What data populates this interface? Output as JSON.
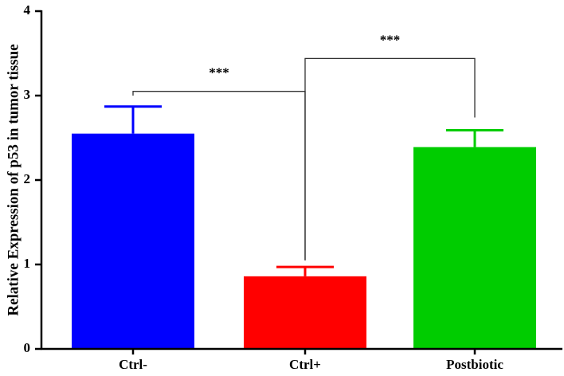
{
  "chart_data": {
    "type": "bar",
    "ylabel": "Relative Expression of p53 in tumor tissue",
    "ylim": [
      0,
      4
    ],
    "yticks": [
      0,
      1,
      2,
      3,
      4
    ],
    "grid": false,
    "categories": [
      "Ctrl-",
      "Ctrl+",
      "Postbiotic"
    ],
    "values": [
      2.55,
      0.86,
      2.39
    ],
    "errors": [
      0.32,
      0.11,
      0.2
    ],
    "colors": [
      "#0000ff",
      "#ff0000",
      "#00cc00"
    ],
    "significance": [
      {
        "from": "Ctrl-",
        "to": "Ctrl+",
        "label": "***"
      },
      {
        "from": "Ctrl+",
        "to": "Postbiotic",
        "label": "***"
      }
    ]
  }
}
